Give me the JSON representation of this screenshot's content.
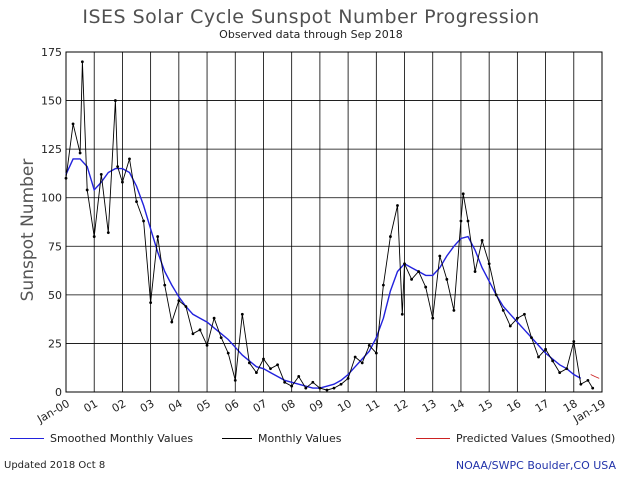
{
  "header": {
    "title": "ISES Solar Cycle Sunspot Number Progression",
    "subtitle": "Observed data through Sep 2018"
  },
  "legend": {
    "smoothed": "Smoothed Monthly Values",
    "monthly": "Monthly Values",
    "predicted": "Predicted Values (Smoothed)"
  },
  "footer": {
    "updated": "Updated 2018 Oct  8",
    "source": "NOAA/SWPC Boulder,CO USA"
  },
  "colors": {
    "smoothed": "#2222dd",
    "monthly": "#000000",
    "predicted": "#cc2222",
    "grid": "#000000"
  },
  "chart_data": {
    "type": "line",
    "title": "ISES Solar Cycle Sunspot Number Progression",
    "subtitle": "Observed data through Sep 2018",
    "ylabel": "Sunspot Number",
    "xlabel": "",
    "xlim": [
      2000,
      2019
    ],
    "ylim": [
      0,
      175
    ],
    "yticks": [
      0,
      25,
      50,
      75,
      100,
      125,
      150,
      175
    ],
    "xticks": [
      {
        "pos": 2000,
        "label": "Jan-00"
      },
      {
        "pos": 2001,
        "label": "01"
      },
      {
        "pos": 2002,
        "label": "02"
      },
      {
        "pos": 2003,
        "label": "03"
      },
      {
        "pos": 2004,
        "label": "04"
      },
      {
        "pos": 2005,
        "label": "05"
      },
      {
        "pos": 2006,
        "label": "06"
      },
      {
        "pos": 2007,
        "label": "07"
      },
      {
        "pos": 2008,
        "label": "08"
      },
      {
        "pos": 2009,
        "label": "09"
      },
      {
        "pos": 2010,
        "label": "10"
      },
      {
        "pos": 2011,
        "label": "11"
      },
      {
        "pos": 2012,
        "label": "12"
      },
      {
        "pos": 2013,
        "label": "13"
      },
      {
        "pos": 2014,
        "label": "14"
      },
      {
        "pos": 2015,
        "label": "15"
      },
      {
        "pos": 2016,
        "label": "16"
      },
      {
        "pos": 2017,
        "label": "17"
      },
      {
        "pos": 2018,
        "label": "18"
      },
      {
        "pos": 2019,
        "label": "Jan-19"
      }
    ],
    "grid": true,
    "series": [
      {
        "name": "Smoothed Monthly Values",
        "x": [
          2000.0,
          2000.25,
          2000.5,
          2000.75,
          2001.0,
          2001.25,
          2001.5,
          2001.75,
          2002.0,
          2002.25,
          2002.5,
          2002.75,
          2003.0,
          2003.25,
          2003.5,
          2003.75,
          2004.0,
          2004.25,
          2004.5,
          2004.75,
          2005.0,
          2005.25,
          2005.5,
          2005.75,
          2006.0,
          2006.25,
          2006.5,
          2006.75,
          2007.0,
          2007.25,
          2007.5,
          2007.75,
          2008.0,
          2008.25,
          2008.5,
          2008.75,
          2009.0,
          2009.25,
          2009.5,
          2009.75,
          2010.0,
          2010.25,
          2010.5,
          2010.75,
          2011.0,
          2011.25,
          2011.5,
          2011.75,
          2012.0,
          2012.25,
          2012.5,
          2012.75,
          2013.0,
          2013.25,
          2013.5,
          2013.75,
          2014.0,
          2014.25,
          2014.5,
          2014.75,
          2015.0,
          2015.25,
          2015.5,
          2015.75,
          2016.0,
          2016.25,
          2016.5,
          2016.75,
          2017.0,
          2017.25,
          2017.5,
          2017.75,
          2018.0,
          2018.25
        ],
        "values": [
          112,
          120,
          120,
          116,
          104,
          108,
          113,
          115,
          115,
          113,
          106,
          96,
          84,
          72,
          62,
          55,
          49,
          44,
          40,
          38,
          36,
          33,
          30,
          27,
          23,
          19,
          16,
          13,
          12,
          10,
          8,
          6,
          5,
          4,
          3,
          2,
          2,
          3,
          4,
          6,
          9,
          13,
          17,
          21,
          28,
          38,
          52,
          62,
          66,
          64,
          62,
          60,
          60,
          64,
          70,
          75,
          79,
          80,
          73,
          64,
          57,
          50,
          44,
          40,
          36,
          32,
          28,
          24,
          20,
          17,
          14,
          12,
          9,
          7
        ]
      },
      {
        "name": "Monthly Values",
        "x": [
          2000.0,
          2000.25,
          2000.5,
          2000.58,
          2000.75,
          2001.0,
          2001.25,
          2001.5,
          2001.75,
          2001.83,
          2002.0,
          2002.25,
          2002.5,
          2002.75,
          2003.0,
          2003.25,
          2003.5,
          2003.75,
          2004.0,
          2004.25,
          2004.5,
          2004.75,
          2005.0,
          2005.25,
          2005.5,
          2005.75,
          2006.0,
          2006.25,
          2006.5,
          2006.75,
          2007.0,
          2007.25,
          2007.5,
          2007.75,
          2008.0,
          2008.25,
          2008.5,
          2008.75,
          2009.0,
          2009.25,
          2009.5,
          2009.75,
          2010.0,
          2010.25,
          2010.5,
          2010.75,
          2011.0,
          2011.25,
          2011.5,
          2011.75,
          2011.92,
          2012.0,
          2012.25,
          2012.5,
          2012.75,
          2013.0,
          2013.25,
          2013.5,
          2013.75,
          2014.0,
          2014.08,
          2014.25,
          2014.5,
          2014.75,
          2015.0,
          2015.25,
          2015.5,
          2015.75,
          2016.0,
          2016.25,
          2016.5,
          2016.75,
          2017.0,
          2017.25,
          2017.5,
          2017.75,
          2018.0,
          2018.25,
          2018.5,
          2018.67
        ],
        "values": [
          110,
          138,
          123,
          170,
          104,
          80,
          112,
          82,
          150,
          116,
          108,
          120,
          98,
          88,
          46,
          80,
          55,
          36,
          47,
          44,
          30,
          32,
          24,
          38,
          28,
          20,
          6,
          40,
          15,
          10,
          17,
          12,
          14,
          5,
          3,
          8,
          2,
          5,
          2,
          1,
          2,
          4,
          7,
          18,
          15,
          24,
          20,
          55,
          80,
          96,
          40,
          66,
          58,
          62,
          54,
          38,
          70,
          58,
          42,
          88,
          102,
          88,
          62,
          78,
          66,
          50,
          42,
          34,
          38,
          40,
          28,
          18,
          22,
          16,
          10,
          12,
          26,
          4,
          6,
          2
        ]
      },
      {
        "name": "Predicted Values (Smoothed)",
        "x": [
          2018.6,
          2018.75,
          2018.9
        ],
        "values": [
          9,
          8,
          7
        ]
      }
    ]
  }
}
